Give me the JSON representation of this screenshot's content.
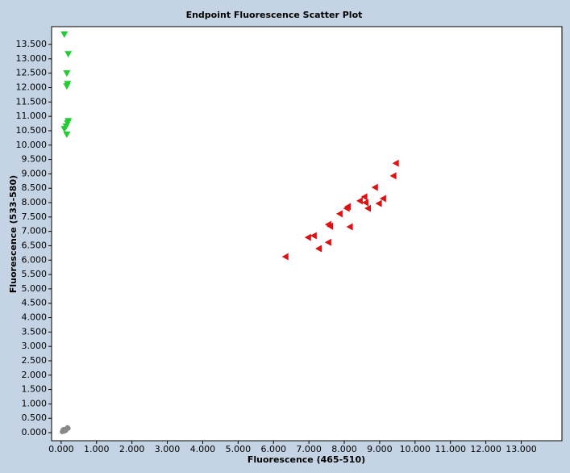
{
  "chart_data": {
    "type": "scatter",
    "title": "Endpoint Fluorescence Scatter Plot",
    "x_label": "Fluorescence (465-510)",
    "y_label": "Fluorescence (533-580)",
    "xlim": [
      -0.27,
      14.15
    ],
    "ylim": [
      -0.28,
      14.12
    ],
    "xticks": [
      {
        "value": 0,
        "label": "0.000"
      },
      {
        "value": 1,
        "label": "1.000"
      },
      {
        "value": 2,
        "label": "2.000"
      },
      {
        "value": 3,
        "label": "3.000"
      },
      {
        "value": 4,
        "label": "4.000"
      },
      {
        "value": 5,
        "label": "5.000"
      },
      {
        "value": 6,
        "label": "6.000"
      },
      {
        "value": 7,
        "label": "7.000"
      },
      {
        "value": 8,
        "label": "8.000"
      },
      {
        "value": 9,
        "label": "9.000"
      },
      {
        "value": 10,
        "label": "10.000"
      },
      {
        "value": 11,
        "label": "11.000"
      },
      {
        "value": 12,
        "label": "12.000"
      },
      {
        "value": 13,
        "label": "13.000"
      }
    ],
    "yticks": [
      {
        "value": 0,
        "label": "0.000"
      },
      {
        "value": 0.5,
        "label": "0.500"
      },
      {
        "value": 1,
        "label": "1.000"
      },
      {
        "value": 1.5,
        "label": "1.500"
      },
      {
        "value": 2,
        "label": "2.000"
      },
      {
        "value": 2.5,
        "label": "2.500"
      },
      {
        "value": 3,
        "label": "3.000"
      },
      {
        "value": 3.5,
        "label": "3.500"
      },
      {
        "value": 4,
        "label": "4.000"
      },
      {
        "value": 4.5,
        "label": "4.500"
      },
      {
        "value": 5,
        "label": "5.000"
      },
      {
        "value": 5.5,
        "label": "5.500"
      },
      {
        "value": 6,
        "label": "6.000"
      },
      {
        "value": 6.5,
        "label": "6.500"
      },
      {
        "value": 7,
        "label": "7.000"
      },
      {
        "value": 7.5,
        "label": "7.500"
      },
      {
        "value": 8,
        "label": "8.000"
      },
      {
        "value": 8.5,
        "label": "8.500"
      },
      {
        "value": 9,
        "label": "9.000"
      },
      {
        "value": 9.5,
        "label": "9.500"
      },
      {
        "value": 10,
        "label": "10.000"
      },
      {
        "value": 10.5,
        "label": "10.500"
      },
      {
        "value": 11,
        "label": "11.000"
      },
      {
        "value": 11.5,
        "label": "11.500"
      },
      {
        "value": 12,
        "label": "12.000"
      },
      {
        "value": 12.5,
        "label": "12.500"
      },
      {
        "value": 13,
        "label": "13.000"
      },
      {
        "value": 13.5,
        "label": "13.500"
      }
    ],
    "grid": false,
    "series": [
      {
        "color": "#22cc33",
        "marker": "triangle-down",
        "x": [
          0.09,
          0.2,
          0.16,
          0.18,
          0.16,
          0.2,
          0.18,
          0.14,
          0.09,
          0.16
        ],
        "y": [
          13.84,
          13.16,
          12.49,
          12.12,
          12.04,
          10.83,
          10.75,
          10.64,
          10.55,
          10.36
        ]
      },
      {
        "color": "#dd1111",
        "marker": "triangle-left",
        "x": [
          6.33,
          6.97,
          7.13,
          7.27,
          7.54,
          7.54,
          7.59,
          7.86,
          8.06,
          8.09,
          8.15,
          8.43,
          8.56,
          8.59,
          8.66,
          8.86,
          8.97,
          9.09,
          9.38,
          9.45
        ],
        "y": [
          6.12,
          6.79,
          6.85,
          6.4,
          6.62,
          7.24,
          7.18,
          7.61,
          7.8,
          7.86,
          7.16,
          8.06,
          8.2,
          8.0,
          7.8,
          8.53,
          7.97,
          8.14,
          8.93,
          9.37
        ]
      },
      {
        "color": "#888888",
        "marker": "circle",
        "x": [
          0.03,
          0.06,
          0.09,
          0.12,
          0.15,
          0.18,
          0.08,
          0.13,
          0.2,
          0.05
        ],
        "y": [
          0.03,
          0.06,
          0.05,
          0.1,
          0.13,
          0.18,
          0.12,
          0.07,
          0.15,
          0.1
        ]
      }
    ]
  }
}
